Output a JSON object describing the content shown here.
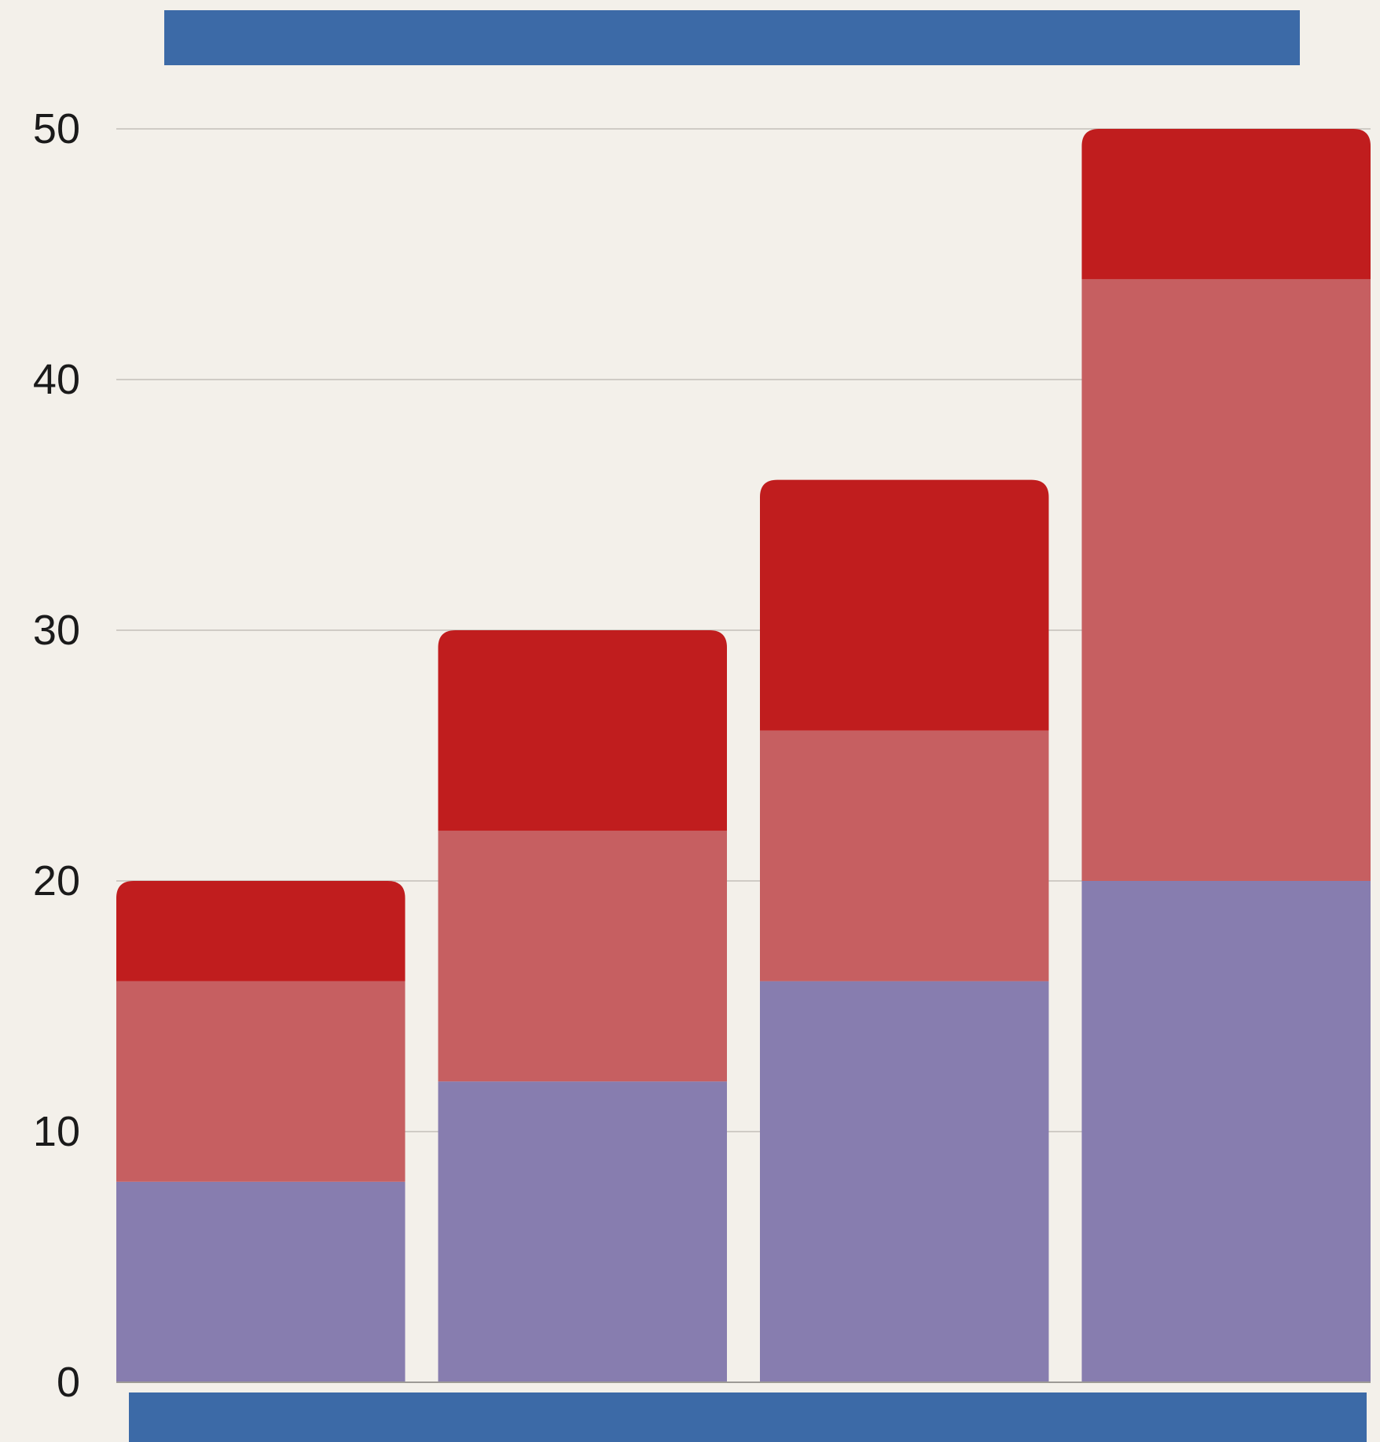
{
  "chart_data": {
    "type": "bar",
    "stacked": true,
    "title": "",
    "xlabel": "",
    "ylabel": "",
    "categories": [
      "",
      "",
      "",
      ""
    ],
    "ylim": [
      0,
      50
    ],
    "yticks": [
      "0",
      "10",
      "20",
      "30",
      "40",
      "50"
    ],
    "grid": true,
    "series": [
      {
        "values": [
          8,
          12,
          16,
          20
        ],
        "color": "#877daf"
      },
      {
        "values": [
          8,
          10,
          10,
          24
        ],
        "color": "#c65f61"
      },
      {
        "values": [
          4,
          8,
          10,
          6
        ],
        "color": "#c01d1e"
      }
    ],
    "colors": {
      "background": "#f3f0ea",
      "grid": "#cfcbc5",
      "axis": "#9d9a96",
      "top_bar": "#3c6aa7",
      "bottom_bar": "#3c6aa7"
    }
  }
}
